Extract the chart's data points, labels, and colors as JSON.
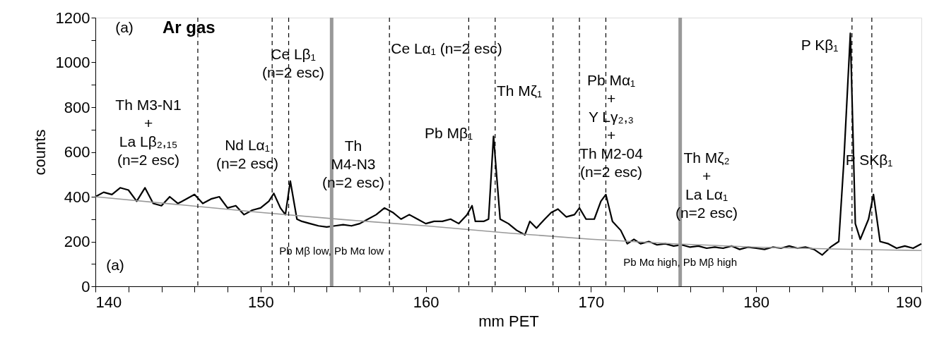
{
  "chart_data": {
    "type": "line",
    "title": "Ar gas",
    "xlabel": "mm PET",
    "ylabel": "counts",
    "xlim": [
      140,
      190
    ],
    "xticks": [
      140,
      {
        "value": 142,
        "label": null
      },
      {
        "value": 144,
        "label": null
      },
      {
        "value": 146,
        "label": null
      },
      {
        "value": 148,
        "label": null
      },
      150,
      {
        "value": 152,
        "label": null
      },
      {
        "value": 154,
        "label": null
      },
      {
        "value": 156,
        "label": null
      },
      {
        "value": 158,
        "label": null
      },
      160,
      {
        "value": 162,
        "label": null
      },
      {
        "value": 164,
        "label": null
      },
      {
        "value": 166,
        "label": null
      },
      {
        "value": 168,
        "label": null
      },
      170,
      {
        "value": 172,
        "label": null
      },
      {
        "value": 174,
        "label": null
      },
      {
        "value": 176,
        "label": null
      },
      {
        "value": 178,
        "label": null
      },
      180,
      {
        "value": 182,
        "label": null
      },
      {
        "value": 184,
        "label": null
      },
      {
        "value": 186,
        "label": null
      },
      {
        "value": 188,
        "label": null
      },
      190
    ],
    "ylim": [
      0,
      1200
    ],
    "yticks": [
      0,
      {
        "value": 100,
        "label": null
      },
      200,
      {
        "value": 300,
        "label": null
      },
      400,
      {
        "value": 500,
        "label": null
      },
      600,
      {
        "value": 700,
        "label": null
      },
      800,
      {
        "value": 900,
        "label": null
      },
      1000,
      {
        "value": 1100,
        "label": null
      },
      1200
    ],
    "grid": false,
    "marker": "none",
    "line_style": "solid",
    "series": [
      {
        "color": "#000000",
        "x": [
          140,
          140.5,
          141,
          141.5,
          142,
          142.5,
          143,
          143.5,
          144,
          144.5,
          145,
          145.5,
          146,
          146.5,
          147,
          147.5,
          148,
          148.5,
          149,
          149.5,
          150,
          150.5,
          150.8,
          151.2,
          151.5,
          151.8,
          152.2,
          152.5,
          153,
          153.5,
          154,
          154.5,
          155,
          155.5,
          156,
          156.5,
          157,
          157.5,
          158,
          158.5,
          159,
          159.5,
          160,
          160.5,
          161,
          161.5,
          162,
          162.5,
          162.8,
          163,
          163.5,
          163.8,
          164.1,
          164.5,
          165,
          165.5,
          166,
          166.3,
          166.7,
          167.2,
          167.6,
          168,
          168.5,
          169,
          169.3,
          169.7,
          170.2,
          170.6,
          170.9,
          171.3,
          171.8,
          172.2,
          172.6,
          173,
          173.5,
          174,
          174.5,
          175,
          175.5,
          176,
          176.5,
          177,
          177.5,
          178,
          178.5,
          179,
          179.5,
          180,
          180.5,
          181,
          181.5,
          182,
          182.5,
          183,
          183.5,
          184,
          184.5,
          185,
          185.3,
          185.7,
          186,
          186.3,
          186.8,
          187.1,
          187.5,
          188,
          188.5,
          189,
          189.5,
          190
        ],
        "values": [
          400,
          420,
          410,
          440,
          430,
          380,
          440,
          370,
          360,
          400,
          370,
          390,
          410,
          370,
          390,
          400,
          350,
          360,
          320,
          340,
          350,
          380,
          415,
          350,
          320,
          470,
          300,
          290,
          280,
          270,
          265,
          270,
          275,
          270,
          280,
          300,
          320,
          350,
          330,
          300,
          320,
          300,
          280,
          290,
          290,
          300,
          280,
          320,
          360,
          290,
          290,
          300,
          670,
          300,
          280,
          250,
          230,
          290,
          260,
          300,
          330,
          345,
          310,
          320,
          350,
          300,
          300,
          380,
          410,
          290,
          250,
          190,
          210,
          190,
          200,
          185,
          190,
          180,
          185,
          175,
          180,
          170,
          175,
          170,
          180,
          165,
          175,
          170,
          165,
          175,
          170,
          180,
          170,
          175,
          165,
          140,
          175,
          200,
          550,
          1130,
          280,
          210,
          300,
          410,
          200,
          190,
          170,
          180,
          170,
          190
        ]
      },
      {
        "color": "#999999",
        "x": [
          140,
          145,
          150,
          155,
          160,
          165,
          170,
          175,
          180,
          185,
          190
        ],
        "values": [
          400,
          365,
          330,
          298,
          270,
          238,
          210,
          190,
          175,
          166,
          160
        ]
      }
    ],
    "ref_lines": [
      {
        "axis": "x",
        "value": 146.2,
        "line_style": "dashed",
        "color": "#000000"
      },
      {
        "axis": "x",
        "value": 150.7,
        "line_style": "dashed",
        "color": "#000000"
      },
      {
        "axis": "x",
        "value": 151.7,
        "line_style": "dashed",
        "color": "#000000"
      },
      {
        "axis": "x",
        "value": 157.8,
        "line_style": "dashed",
        "color": "#000000"
      },
      {
        "axis": "x",
        "value": 162.6,
        "line_style": "dashed",
        "color": "#000000"
      },
      {
        "axis": "x",
        "value": 164.2,
        "line_style": "dashed",
        "color": "#000000"
      },
      {
        "axis": "x",
        "value": 167.7,
        "line_style": "dashed",
        "color": "#000000"
      },
      {
        "axis": "x",
        "value": 169.3,
        "line_style": "dashed",
        "color": "#000000"
      },
      {
        "axis": "x",
        "value": 170.9,
        "line_style": "dashed",
        "color": "#000000"
      },
      {
        "axis": "x",
        "value": 185.8,
        "line_style": "dashed",
        "color": "#000000"
      },
      {
        "axis": "x",
        "value": 187.0,
        "line_style": "dashed",
        "color": "#000000"
      },
      {
        "axis": "x",
        "value": 154.3,
        "label": "Pb Mβ low, Pb Mα low",
        "color": "#999999",
        "line_style": "solid"
      },
      {
        "axis": "x",
        "value": 175.4,
        "label": "Pb Mα high, Pb Mβ high",
        "color": "#999999",
        "line_style": "solid"
      }
    ],
    "annotations": [
      "(a)",
      "(a)",
      "Th M3-N1\n+\nLa Lβ₂,₁₅\n(n=2 esc)",
      "Nd Lα₁\n(n=2 esc)",
      "Ce Lβ₁\n(n=2 esc)",
      "Th\nM4-N3\n(n=2 esc)",
      "Ce Lα₁ (n=2 esc)",
      "Pb Mβ₁",
      "Th Mζ₁",
      "Pb Mα₁\n+\nY Lγ₂,₃\n+\nTh M2-04\n(n=2 esc)",
      "Th Mζ₂\n+\nLa Lα₁\n(n=2 esc)",
      "P Kβ₁",
      "P SKβ₁"
    ]
  }
}
